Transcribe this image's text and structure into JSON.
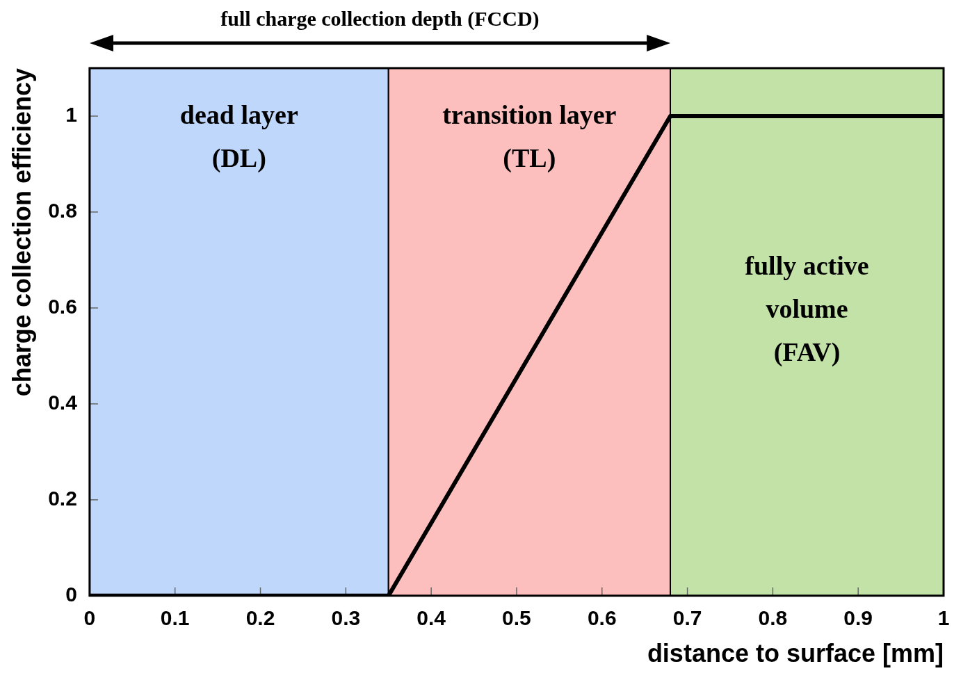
{
  "chart_data": {
    "type": "line",
    "xlabel": "distance to surface [mm]",
    "ylabel": "charge collection efficiency",
    "x": [
      0,
      0.35,
      0.68,
      1
    ],
    "series": [
      {
        "color": "#000000",
        "values": [
          0,
          0,
          1,
          1
        ]
      }
    ],
    "xlim": [
      0,
      1
    ],
    "xticks": [
      0,
      0.1,
      0.2,
      0.3,
      0.4,
      0.5,
      0.6,
      0.7,
      0.8,
      0.9,
      1
    ],
    "ylim": [
      0,
      1.1
    ],
    "yticks": [
      0,
      0.2,
      0.4,
      0.6,
      0.8,
      1
    ],
    "grid": false,
    "legend": false,
    "marker": "none",
    "line_style": "solid",
    "bands": [
      {
        "axis": "x",
        "from": 0,
        "to": 0.35,
        "label": "dead layer\n(DL)",
        "color": "#bfd7fb"
      },
      {
        "axis": "x",
        "from": 0.35,
        "to": 0.68,
        "label": "transition layer\n(TL)",
        "color": "#fcbfbd"
      },
      {
        "axis": "x",
        "from": 0.68,
        "to": 1,
        "label": "fully active\nvolume\n(FAV)",
        "color": "#c3e2a8"
      }
    ],
    "annotations": [
      "full charge collection depth (FCCD)"
    ]
  }
}
